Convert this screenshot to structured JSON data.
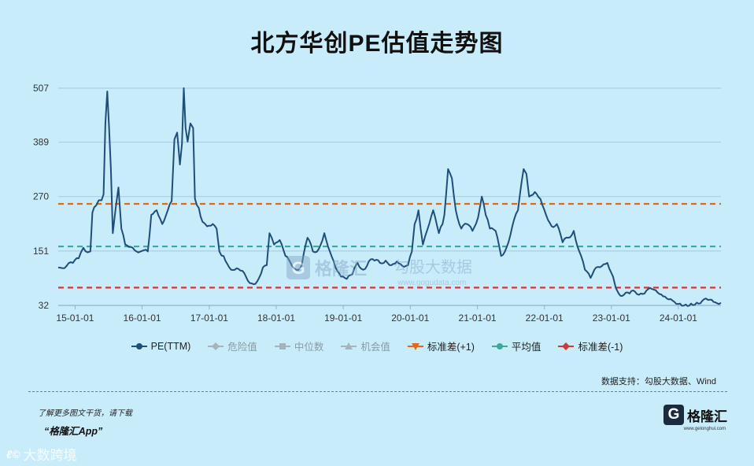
{
  "title": "北方华创PE估值走势图",
  "chart_data": {
    "type": "line",
    "title": "北方华创PE估值走势图",
    "xlabel": "",
    "ylabel": "",
    "y_ticks": [
      32,
      151,
      270,
      389,
      507
    ],
    "ylim": [
      32,
      507
    ],
    "x_ticks": [
      "15-01-01",
      "16-01-01",
      "17-01-01",
      "18-01-01",
      "19-01-01",
      "20-01-01",
      "21-01-01",
      "22-01-01",
      "23-01-01",
      "24-01-01"
    ],
    "xlim": [
      "2014-10-01",
      "2024-08-20"
    ],
    "grid": true,
    "legend_position": "bottom",
    "series": [
      {
        "name": "PE(TTM)",
        "color": "#1f4e79",
        "points": [
          [
            "2014-10-01",
            115
          ],
          [
            "2014-11-15",
            118
          ],
          [
            "2014-12-20",
            125
          ],
          [
            "2015-01-20",
            135
          ],
          [
            "2015-02-15",
            158
          ],
          [
            "2015-03-10",
            148
          ],
          [
            "2015-03-25",
            150
          ],
          [
            "2015-04-05",
            235
          ],
          [
            "2015-04-25",
            250
          ],
          [
            "2015-05-10",
            262
          ],
          [
            "2015-05-25",
            262
          ],
          [
            "2015-06-05",
            275
          ],
          [
            "2015-06-15",
            430
          ],
          [
            "2015-06-25",
            500
          ],
          [
            "2015-07-05",
            420
          ],
          [
            "2015-07-15",
            330
          ],
          [
            "2015-07-25",
            190
          ],
          [
            "2015-08-10",
            245
          ],
          [
            "2015-08-25",
            290
          ],
          [
            "2015-09-10",
            200
          ],
          [
            "2015-10-01",
            165
          ],
          [
            "2015-11-01",
            160
          ],
          [
            "2015-12-01",
            150
          ],
          [
            "2016-02-01",
            150
          ],
          [
            "2016-02-20",
            230
          ],
          [
            "2016-03-20",
            240
          ],
          [
            "2016-04-20",
            210
          ],
          [
            "2016-05-20",
            240
          ],
          [
            "2016-06-10",
            260
          ],
          [
            "2016-06-25",
            395
          ],
          [
            "2016-07-10",
            410
          ],
          [
            "2016-07-25",
            340
          ],
          [
            "2016-08-05",
            385
          ],
          [
            "2016-08-15",
            507
          ],
          [
            "2016-08-25",
            420
          ],
          [
            "2016-09-05",
            390
          ],
          [
            "2016-09-20",
            430
          ],
          [
            "2016-10-05",
            420
          ],
          [
            "2016-10-15",
            265
          ],
          [
            "2016-11-05",
            245
          ],
          [
            "2016-11-25",
            215
          ],
          [
            "2016-12-20",
            205
          ],
          [
            "2017-01-20",
            210
          ],
          [
            "2017-02-10",
            200
          ],
          [
            "2017-02-25",
            150
          ],
          [
            "2017-03-20",
            140
          ],
          [
            "2017-04-20",
            115
          ],
          [
            "2017-05-20",
            110
          ],
          [
            "2017-06-20",
            108
          ],
          [
            "2017-07-20",
            95
          ],
          [
            "2017-08-20",
            80
          ],
          [
            "2017-09-20",
            85
          ],
          [
            "2017-10-20",
            115
          ],
          [
            "2017-11-10",
            120
          ],
          [
            "2017-11-25",
            190
          ],
          [
            "2017-12-20",
            165
          ],
          [
            "2018-01-20",
            175
          ],
          [
            "2018-02-20",
            140
          ],
          [
            "2018-03-20",
            125
          ],
          [
            "2018-04-20",
            110
          ],
          [
            "2018-05-20",
            120
          ],
          [
            "2018-06-20",
            180
          ],
          [
            "2018-07-20",
            150
          ],
          [
            "2018-08-20",
            155
          ],
          [
            "2018-09-20",
            190
          ],
          [
            "2018-10-20",
            150
          ],
          [
            "2018-11-20",
            115
          ],
          [
            "2018-12-20",
            95
          ],
          [
            "2019-01-20",
            90
          ],
          [
            "2019-02-20",
            100
          ],
          [
            "2019-03-20",
            125
          ],
          [
            "2019-04-20",
            110
          ],
          [
            "2019-05-20",
            128
          ],
          [
            "2019-06-20",
            130
          ],
          [
            "2019-07-20",
            125
          ],
          [
            "2019-08-20",
            130
          ],
          [
            "2019-09-20",
            120
          ],
          [
            "2019-10-20",
            128
          ],
          [
            "2019-11-20",
            118
          ],
          [
            "2019-12-20",
            120
          ],
          [
            "2020-01-10",
            150
          ],
          [
            "2020-01-25",
            210
          ],
          [
            "2020-02-15",
            240
          ],
          [
            "2020-03-10",
            165
          ],
          [
            "2020-04-05",
            200
          ],
          [
            "2020-05-05",
            240
          ],
          [
            "2020-06-05",
            190
          ],
          [
            "2020-06-25",
            210
          ],
          [
            "2020-07-05",
            230
          ],
          [
            "2020-07-25",
            330
          ],
          [
            "2020-08-15",
            310
          ],
          [
            "2020-09-05",
            240
          ],
          [
            "2020-10-05",
            200
          ],
          [
            "2020-11-05",
            210
          ],
          [
            "2020-12-05",
            195
          ],
          [
            "2021-01-05",
            225
          ],
          [
            "2021-01-25",
            270
          ],
          [
            "2021-02-15",
            230
          ],
          [
            "2021-03-10",
            200
          ],
          [
            "2021-04-10",
            195
          ],
          [
            "2021-05-10",
            140
          ],
          [
            "2021-06-10",
            160
          ],
          [
            "2021-07-10",
            205
          ],
          [
            "2021-08-10",
            240
          ],
          [
            "2021-09-10",
            330
          ],
          [
            "2021-09-25",
            320
          ],
          [
            "2021-10-10",
            270
          ],
          [
            "2021-11-10",
            280
          ],
          [
            "2021-12-10",
            265
          ],
          [
            "2022-01-10",
            230
          ],
          [
            "2022-02-10",
            205
          ],
          [
            "2022-03-10",
            210
          ],
          [
            "2022-04-10",
            170
          ],
          [
            "2022-05-10",
            180
          ],
          [
            "2022-06-10",
            195
          ],
          [
            "2022-07-10",
            150
          ],
          [
            "2022-08-10",
            110
          ],
          [
            "2022-09-10",
            92
          ],
          [
            "2022-10-10",
            115
          ],
          [
            "2022-11-10",
            118
          ],
          [
            "2022-12-10",
            125
          ],
          [
            "2023-01-10",
            95
          ],
          [
            "2023-01-25",
            70
          ],
          [
            "2023-02-10",
            58
          ],
          [
            "2023-03-10",
            55
          ],
          [
            "2023-04-10",
            58
          ],
          [
            "2023-05-10",
            62
          ],
          [
            "2023-06-10",
            58
          ],
          [
            "2023-07-10",
            64
          ],
          [
            "2023-08-10",
            68
          ],
          [
            "2023-09-10",
            60
          ],
          [
            "2023-10-10",
            52
          ],
          [
            "2023-11-10",
            45
          ],
          [
            "2023-12-10",
            40
          ],
          [
            "2024-01-10",
            36
          ],
          [
            "2024-02-10",
            34
          ],
          [
            "2024-03-10",
            36
          ],
          [
            "2024-04-10",
            38
          ],
          [
            "2024-05-10",
            42
          ],
          [
            "2024-06-10",
            44
          ],
          [
            "2024-07-10",
            40
          ],
          [
            "2024-08-20",
            38
          ]
        ]
      }
    ],
    "reference_lines": [
      {
        "name": "标准差(+1)",
        "value": 254,
        "color": "#e06a1c"
      },
      {
        "name": "平均值",
        "value": 161,
        "color": "#3fa79c"
      },
      {
        "name": "标准差(-1)",
        "value": 71,
        "color": "#cc3b3b"
      }
    ],
    "legend": [
      {
        "name": "PE(TTM)",
        "color": "#1f4e79",
        "symbol": "circle",
        "muted": false
      },
      {
        "name": "危险值",
        "color": "#a6b3bb",
        "symbol": "diamond",
        "muted": true
      },
      {
        "name": "中位数",
        "color": "#a6b3bb",
        "symbol": "square",
        "muted": true
      },
      {
        "name": "机会值",
        "color": "#a6b3bb",
        "symbol": "triangle",
        "muted": true
      },
      {
        "name": "标准差(+1)",
        "color": "#e06a1c",
        "symbol": "triangle-down",
        "muted": false
      },
      {
        "name": "平均值",
        "color": "#3fa79c",
        "symbol": "circle",
        "muted": false
      },
      {
        "name": "标准差(-1)",
        "color": "#cc3b3b",
        "symbol": "diamond",
        "muted": false
      }
    ]
  },
  "watermark": {
    "brand": "格隆汇",
    "site": "www.gogudata.com",
    "brand2": "勾股大数据"
  },
  "source_text": "数据支持：勾股大数据、Wind",
  "promo": {
    "line1": "了解更多图文干货，请下载",
    "line2": "“格隆汇App”"
  },
  "brand": {
    "mark": "G",
    "name": "格隆汇",
    "url": "www.gelonghui.com"
  },
  "bottom_watermark": {
    "logo": "ℓ©",
    "text": "大数跨境"
  }
}
